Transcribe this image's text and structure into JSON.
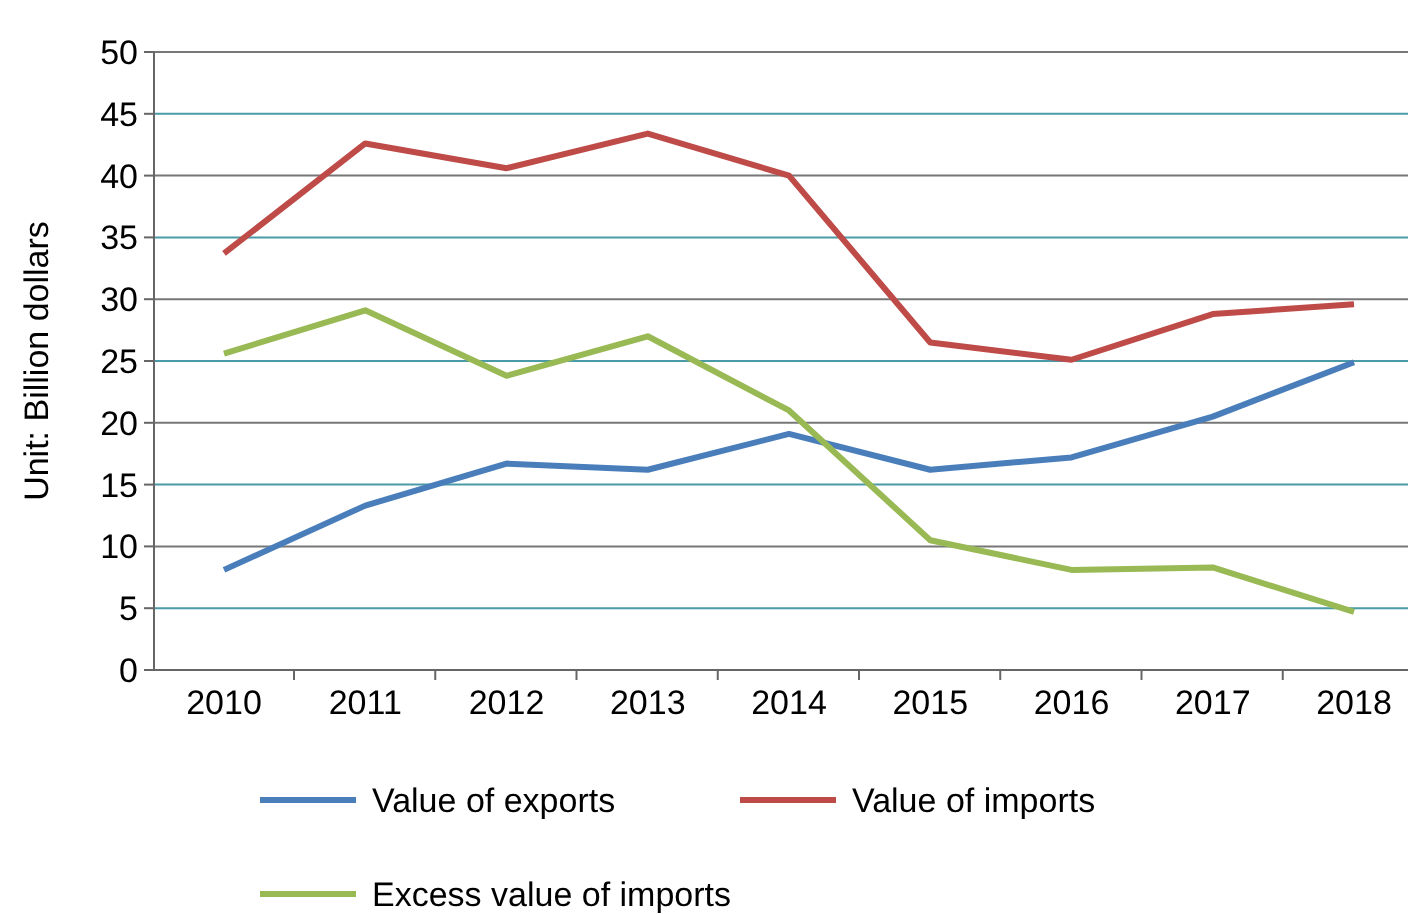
{
  "chart_data": {
    "type": "line",
    "ylabel": "Unit: Billion dollars",
    "categories": [
      "2010",
      "2011",
      "2012",
      "2013",
      "2014",
      "2015",
      "2016",
      "2017",
      "2018"
    ],
    "series": [
      {
        "name": "Value of exports",
        "color": "#4a7ebb",
        "values": [
          8.1,
          13.3,
          16.7,
          16.2,
          19.1,
          16.2,
          17.2,
          20.5,
          24.9
        ]
      },
      {
        "name": "Value of imports",
        "color": "#be4b48",
        "values": [
          33.7,
          42.6,
          40.6,
          43.4,
          40,
          26.5,
          25.1,
          28.8,
          29.6
        ]
      },
      {
        "name": "Excess value of imports",
        "color": "#98b954",
        "values": [
          25.6,
          29.1,
          23.8,
          27,
          21,
          10.5,
          8.1,
          8.3,
          4.7
        ]
      }
    ],
    "ylim": [
      0,
      50
    ],
    "yticks": [
      0,
      5,
      10,
      15,
      20,
      25,
      30,
      35,
      40,
      45,
      50
    ],
    "grid": "y",
    "legend": "bottom",
    "marker": "none",
    "line_style": "solid"
  }
}
